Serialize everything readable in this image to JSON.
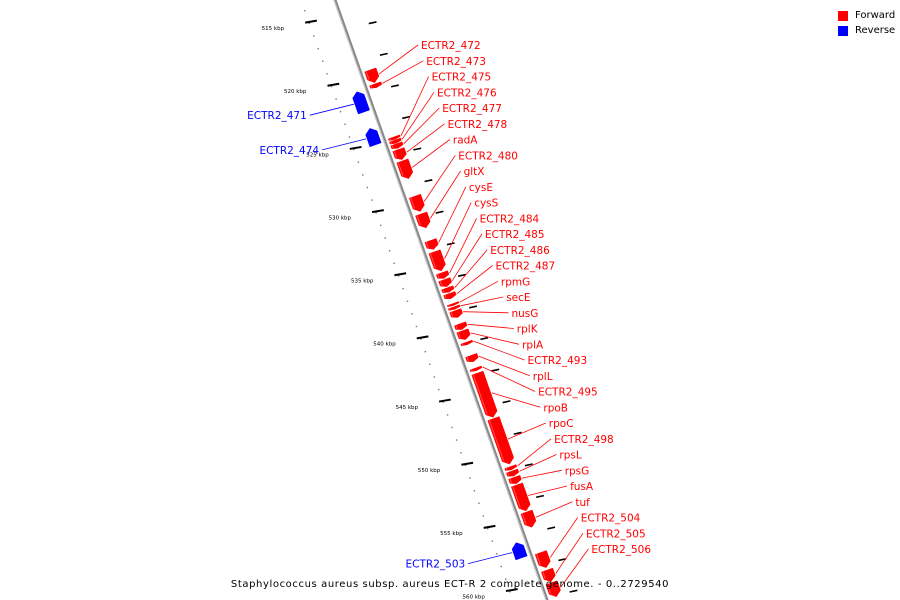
{
  "caption": "Staphylococcus aureus subsp. aureus ECT-R 2 complete genome. - 0..2729540",
  "legend": [
    {
      "label": "Forward",
      "color": "#ff0000"
    },
    {
      "label": "Reverse",
      "color": "#0000ff"
    }
  ],
  "colors": {
    "forward": "#ff0000",
    "reverse": "#0000ff",
    "backbone": "#888888"
  },
  "view": {
    "start_kbp": 514,
    "end_kbp": 561.5
  },
  "scale_ticks": [
    {
      "kbp": 515,
      "label": "515 kbp"
    },
    {
      "kbp": 520,
      "label": "520 kbp"
    },
    {
      "kbp": 525,
      "label": "525 kbp"
    },
    {
      "kbp": 530,
      "label": "530 kbp"
    },
    {
      "kbp": 535,
      "label": "535 kbp"
    },
    {
      "kbp": 540,
      "label": "540 kbp"
    },
    {
      "kbp": 545,
      "label": "545 kbp"
    },
    {
      "kbp": 550,
      "label": "550 kbp"
    },
    {
      "kbp": 555,
      "label": "555 kbp"
    },
    {
      "kbp": 560,
      "label": "560 kbp"
    }
  ],
  "genes": [
    {
      "name": "ECTR2_472",
      "strand": "forward",
      "start": 519.8,
      "end": 520.8
    },
    {
      "name": "ECTR2_473",
      "strand": "forward",
      "start": 520.9,
      "end": 521.2
    },
    {
      "name": "ECTR2_475",
      "strand": "forward",
      "start": 525.1,
      "end": 525.3
    },
    {
      "name": "ECTR2_476",
      "strand": "forward",
      "start": 525.35,
      "end": 525.6
    },
    {
      "name": "ECTR2_477",
      "strand": "forward",
      "start": 525.65,
      "end": 526.0
    },
    {
      "name": "ECTR2_478",
      "strand": "forward",
      "start": 526.1,
      "end": 526.9
    },
    {
      "name": "radA",
      "strand": "forward",
      "start": 527.0,
      "end": 528.4
    },
    {
      "name": "ECTR2_480",
      "strand": "forward",
      "start": 529.8,
      "end": 531.0
    },
    {
      "name": "gltX",
      "strand": "forward",
      "start": 531.2,
      "end": 532.3
    },
    {
      "name": "cysE",
      "strand": "forward",
      "start": 533.3,
      "end": 534.0
    },
    {
      "name": "cysS",
      "strand": "forward",
      "start": 534.2,
      "end": 535.7
    },
    {
      "name": "ECTR2_484",
      "strand": "forward",
      "start": 535.85,
      "end": 536.3
    },
    {
      "name": "ECTR2_485",
      "strand": "forward",
      "start": 536.4,
      "end": 536.95
    },
    {
      "name": "ECTR2_486",
      "strand": "forward",
      "start": 537.05,
      "end": 537.4
    },
    {
      "name": "ECTR2_487",
      "strand": "forward",
      "start": 537.5,
      "end": 537.9
    },
    {
      "name": "rpmG",
      "strand": "forward",
      "start": 538.3,
      "end": 538.45
    },
    {
      "name": "secE",
      "strand": "forward",
      "start": 538.55,
      "end": 538.75
    },
    {
      "name": "nusG",
      "strand": "forward",
      "start": 538.85,
      "end": 539.4
    },
    {
      "name": "rplK",
      "strand": "forward",
      "start": 539.9,
      "end": 540.35
    },
    {
      "name": "rplA",
      "strand": "forward",
      "start": 540.45,
      "end": 541.15
    },
    {
      "name": "ECTR2_493",
      "strand": "forward",
      "start": 541.35,
      "end": 541.55
    },
    {
      "name": "rplL",
      "strand": "forward",
      "start": 542.4,
      "end": 542.9
    },
    {
      "name": "ECTR2_495",
      "strand": "forward",
      "start": 543.4,
      "end": 543.6
    },
    {
      "name": "rpoB",
      "strand": "forward",
      "start": 543.8,
      "end": 547.3
    },
    {
      "name": "rpoC",
      "strand": "forward",
      "start": 547.4,
      "end": 551.0
    },
    {
      "name": "ECTR2_498",
      "strand": "forward",
      "start": 551.2,
      "end": 551.45
    },
    {
      "name": "rpsL",
      "strand": "forward",
      "start": 551.55,
      "end": 551.95
    },
    {
      "name": "rpsG",
      "strand": "forward",
      "start": 552.05,
      "end": 552.55
    },
    {
      "name": "fusA",
      "strand": "forward",
      "start": 552.65,
      "end": 554.7
    },
    {
      "name": "tuf",
      "strand": "forward",
      "start": 554.8,
      "end": 556.0
    },
    {
      "name": "ECTR2_504",
      "strand": "forward",
      "start": 558.0,
      "end": 559.2
    },
    {
      "name": "ECTR2_505",
      "strand": "forward",
      "start": 559.4,
      "end": 560.3
    },
    {
      "name": "ECTR2_506",
      "strand": "forward",
      "start": 560.4,
      "end": 561.5
    },
    {
      "name": "ECTR2_471",
      "strand": "reverse",
      "start": 521.0,
      "end": 522.6
    },
    {
      "name": "ECTR2_474",
      "strand": "reverse",
      "start": 523.9,
      "end": 525.2
    },
    {
      "name": "ECTR2_503",
      "strand": "reverse",
      "start": 556.7,
      "end": 557.9
    }
  ]
}
